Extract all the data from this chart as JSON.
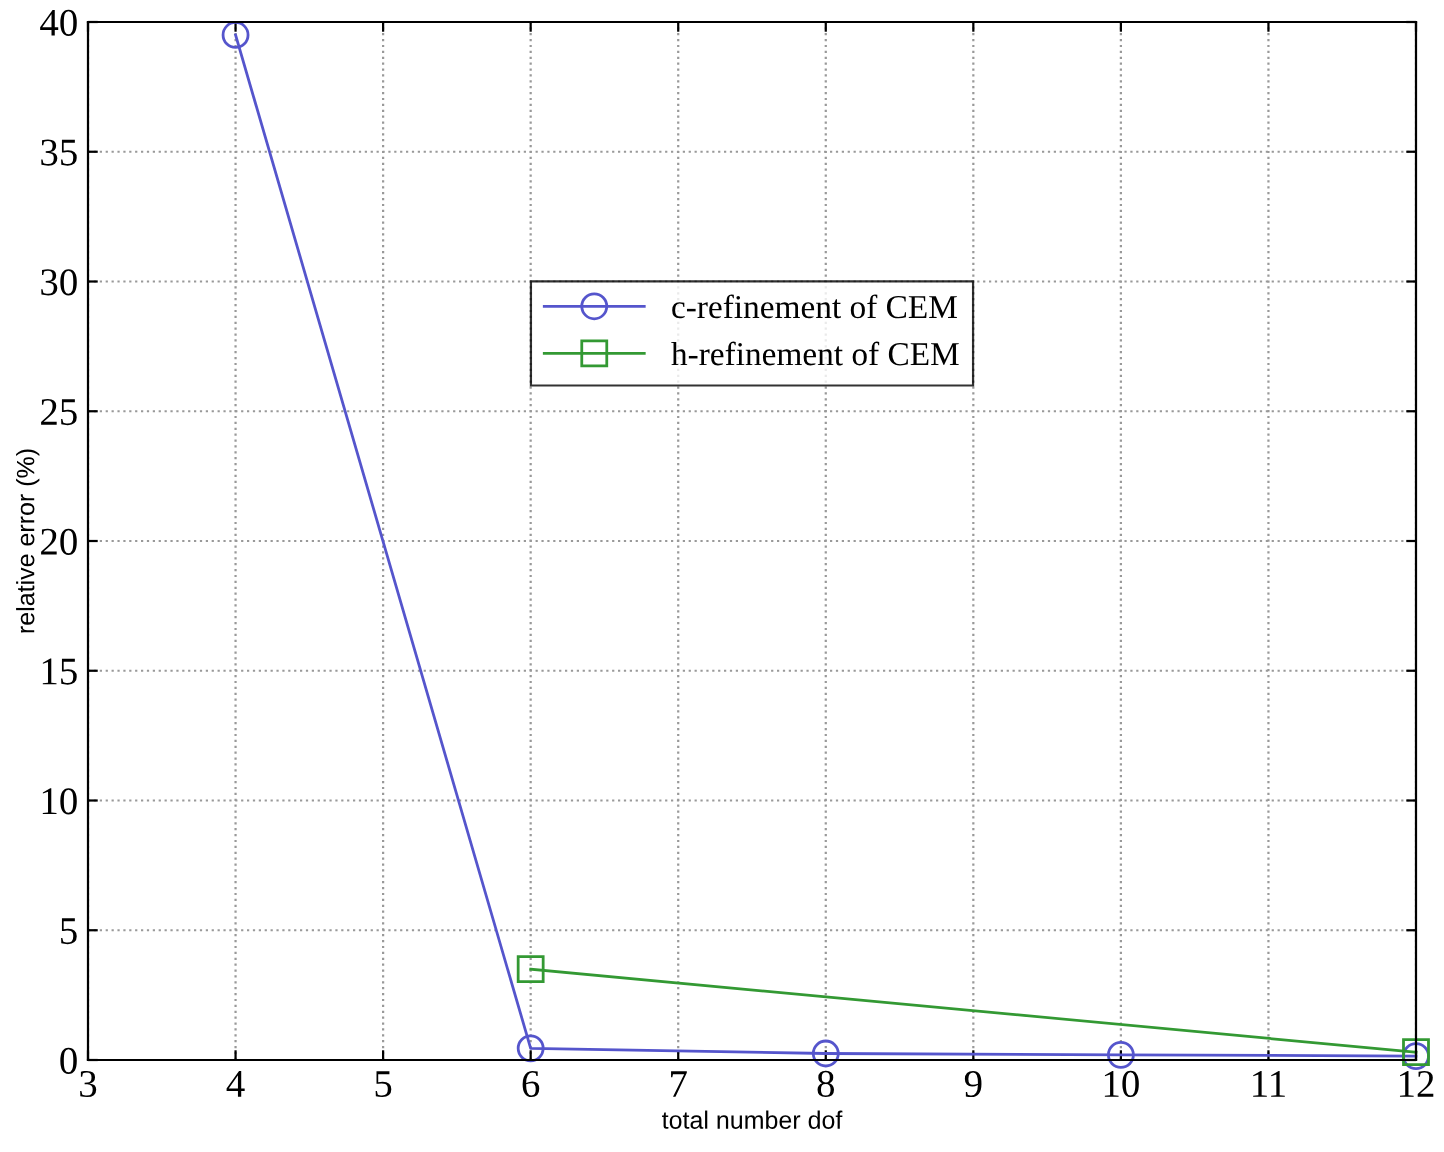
{
  "chart_data": {
    "type": "line",
    "xlabel": "total number dof",
    "ylabel": "relative error (%)",
    "xlim": [
      3,
      12
    ],
    "xticks": [
      3,
      4,
      5,
      6,
      7,
      8,
      9,
      10,
      11,
      12
    ],
    "ylim": [
      0,
      40
    ],
    "yticks": [
      0,
      5,
      10,
      15,
      20,
      25,
      30,
      35,
      40
    ],
    "grid": true,
    "legend": "center",
    "line_style": "solid",
    "series": [
      {
        "name": "c-refinement of CEM",
        "color": "#5555cc",
        "marker": "circle",
        "x": [
          4,
          6,
          8,
          10,
          12
        ],
        "values": [
          39.5,
          0.45,
          0.25,
          0.2,
          0.15
        ]
      },
      {
        "name": "h-refinement of CEM",
        "color": "#339933",
        "marker": "square",
        "x": [
          6,
          12
        ],
        "values": [
          3.5,
          0.3
        ]
      }
    ]
  }
}
